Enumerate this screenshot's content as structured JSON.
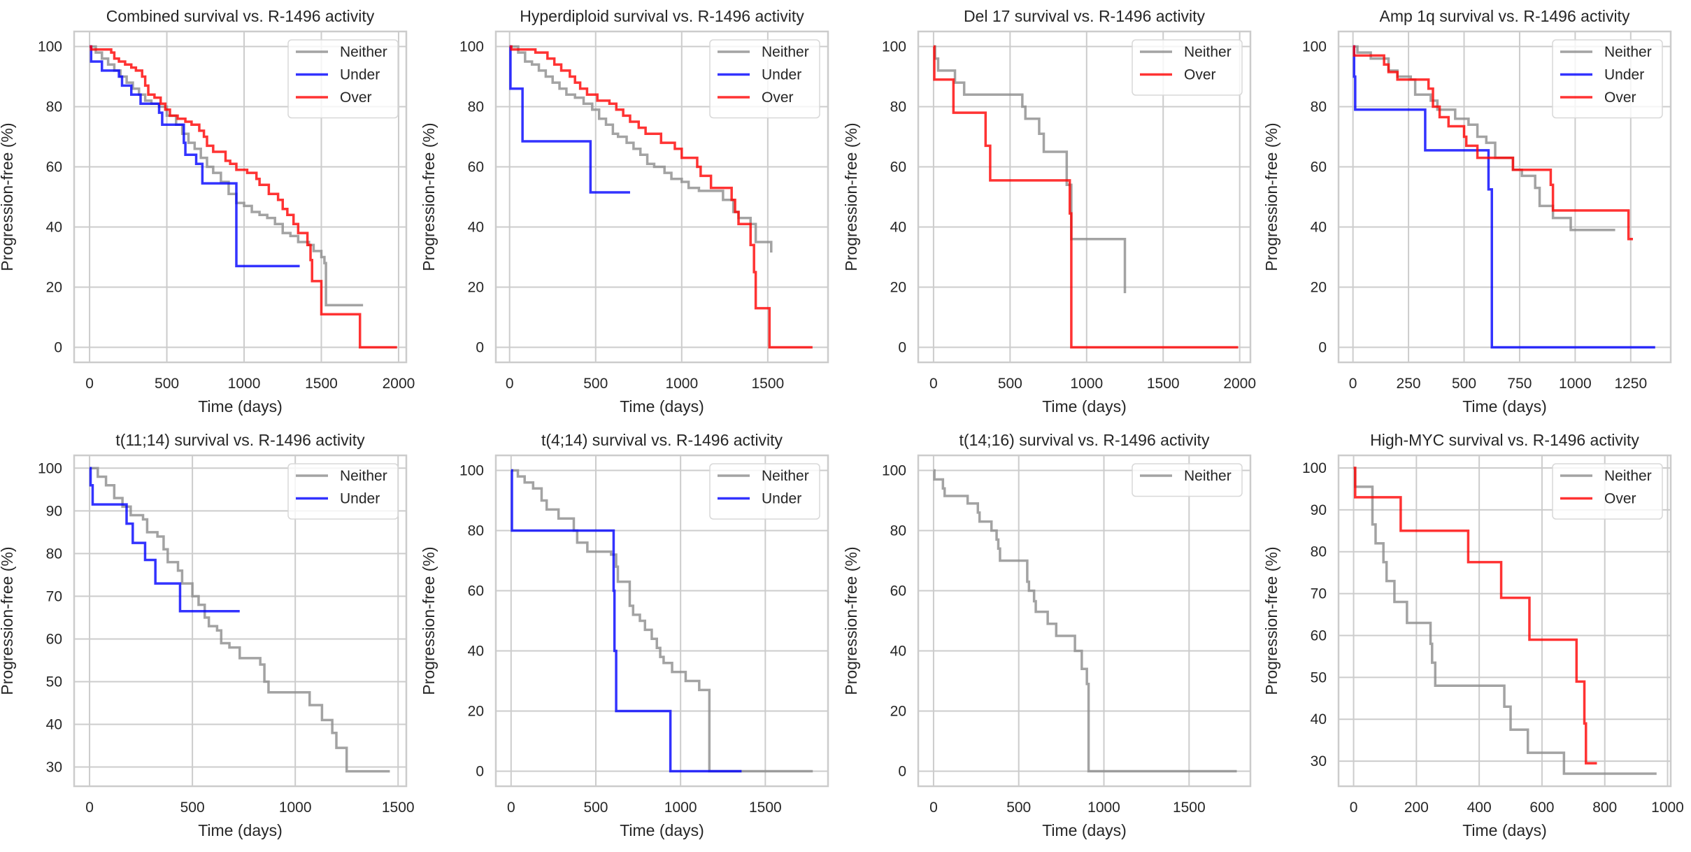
{
  "figure": {
    "colors": {
      "Neither": "#8c8c8c",
      "Under": "#0000ff",
      "Over": "#ff0000",
      "grid": "#cccccc",
      "frame": "#cccccc",
      "text": "#262626"
    }
  },
  "chart_data": [
    {
      "type": "line",
      "step": true,
      "title": "Combined survival vs. R-1496 activity",
      "xlabel": "Time (days)",
      "ylabel": "Progression-free (%)",
      "xlim": [
        -100,
        2050
      ],
      "ylim": [
        -5,
        105
      ],
      "xticks": [
        0,
        500,
        1000,
        1500,
        2000
      ],
      "yticks": [
        0,
        20,
        40,
        60,
        80,
        100
      ],
      "grid": true,
      "legend_position": "top-right",
      "series": [
        {
          "name": "Neither",
          "x": [
            0,
            40,
            80,
            120,
            160,
            200,
            240,
            280,
            320,
            360,
            400,
            450,
            500,
            560,
            600,
            640,
            680,
            720,
            760,
            800,
            850,
            900,
            950,
            1000,
            1050,
            1100,
            1150,
            1200,
            1250,
            1300,
            1350,
            1420,
            1450,
            1500,
            1520,
            1530,
            1770
          ],
          "y": [
            100,
            98,
            96,
            94,
            92,
            90,
            88,
            86,
            84,
            82,
            81,
            80,
            77,
            74,
            71,
            68,
            66,
            63,
            60,
            58,
            55,
            51,
            48,
            47,
            45,
            44,
            43,
            41,
            38,
            37,
            35,
            34,
            32,
            30,
            28,
            14,
            14
          ]
        },
        {
          "name": "Under",
          "x": [
            0,
            10,
            80,
            190,
            210,
            270,
            330,
            450,
            470,
            610,
            620,
            640,
            690,
            730,
            950,
            1360
          ],
          "y": [
            100,
            95,
            92,
            90,
            87,
            84,
            81,
            78,
            74,
            68,
            64,
            64,
            61,
            54.5,
            27,
            27
          ]
        },
        {
          "name": "Over",
          "x": [
            0,
            10,
            140,
            160,
            190,
            230,
            270,
            300,
            340,
            360,
            380,
            420,
            460,
            490,
            520,
            570,
            620,
            660,
            700,
            710,
            740,
            760,
            800,
            880,
            910,
            950,
            1020,
            1080,
            1100,
            1160,
            1220,
            1250,
            1280,
            1320,
            1350,
            1410,
            1430,
            1440,
            1500,
            1550,
            1750,
            1990
          ],
          "y": [
            100,
            99,
            98,
            96,
            95,
            94,
            93,
            92,
            90,
            87,
            84,
            83,
            81,
            79,
            77,
            76,
            75,
            74,
            74,
            72,
            70,
            67,
            65,
            62,
            61,
            59,
            58,
            56,
            54,
            51,
            49,
            46,
            44,
            41,
            38,
            34,
            29,
            22,
            11,
            11,
            0,
            0
          ]
        }
      ]
    },
    {
      "type": "line",
      "step": true,
      "title": "Hyperdiploid survival vs. R-1496 activity",
      "xlabel": "Time (days)",
      "ylabel": "Progression-free (%)",
      "xlim": [
        -80,
        1850
      ],
      "ylim": [
        -5,
        105
      ],
      "xticks": [
        0,
        500,
        1000,
        1500
      ],
      "yticks": [
        0,
        20,
        40,
        60,
        80,
        100
      ],
      "grid": true,
      "legend_position": "top-right",
      "series": [
        {
          "name": "Neither",
          "x": [
            0,
            50,
            90,
            130,
            170,
            210,
            250,
            290,
            330,
            380,
            430,
            480,
            520,
            560,
            600,
            630,
            680,
            720,
            760,
            800,
            840,
            900,
            940,
            1000,
            1040,
            1100,
            1150,
            1200,
            1240,
            1300,
            1330,
            1400,
            1430,
            1500,
            1520
          ],
          "y": [
            100,
            98,
            95,
            94,
            92,
            90,
            88,
            86,
            84,
            83,
            81,
            79,
            76,
            74,
            71,
            70,
            68,
            66,
            64,
            61,
            60,
            58,
            56,
            55,
            53,
            52,
            52,
            52,
            49,
            45,
            43,
            41,
            35,
            35,
            31.5
          ]
        },
        {
          "name": "Under",
          "x": [
            0,
            5,
            75,
            470,
            700
          ],
          "y": [
            100,
            86,
            68.5,
            51.5,
            51.5
          ]
        },
        {
          "name": "Over",
          "x": [
            0,
            10,
            150,
            220,
            260,
            300,
            350,
            380,
            410,
            450,
            510,
            580,
            620,
            660,
            700,
            750,
            790,
            880,
            960,
            1000,
            1090,
            1110,
            1170,
            1290,
            1310,
            1330,
            1400,
            1420,
            1430,
            1510,
            1760
          ],
          "y": [
            100,
            99,
            98,
            96,
            94,
            92,
            90,
            88,
            86,
            84,
            82,
            81,
            79,
            77,
            75,
            73,
            71,
            68,
            66,
            63,
            60,
            57,
            53,
            49,
            45,
            41,
            34,
            25,
            13,
            0,
            0
          ]
        }
      ]
    },
    {
      "type": "line",
      "step": true,
      "title": "Del 17 survival vs. R-1496 activity",
      "xlabel": "Time (days)",
      "ylabel": "Progression-free (%)",
      "xlim": [
        -100,
        2070
      ],
      "ylim": [
        -5,
        105
      ],
      "xticks": [
        0,
        500,
        1000,
        1500,
        2000
      ],
      "yticks": [
        0,
        20,
        40,
        60,
        80,
        100
      ],
      "grid": true,
      "legend_position": "top-right",
      "series": [
        {
          "name": "Neither",
          "x": [
            0,
            10,
            30,
            140,
            200,
            580,
            600,
            690,
            720,
            870,
            900,
            1250
          ],
          "y": [
            100,
            96,
            92,
            88,
            84,
            80,
            76,
            71,
            65,
            54,
            36,
            18
          ]
        },
        {
          "name": "Over",
          "x": [
            0,
            5,
            130,
            340,
            370,
            890,
            900,
            1990
          ],
          "y": [
            100,
            89,
            78,
            67,
            55.5,
            44.5,
            0,
            0
          ]
        }
      ]
    },
    {
      "type": "line",
      "step": true,
      "title": "Amp 1q survival vs. R-1496 activity",
      "xlabel": "Time (days)",
      "ylabel": "Progression-free (%)",
      "xlim": [
        -65,
        1430
      ],
      "ylim": [
        -5,
        105
      ],
      "xticks": [
        0,
        250,
        500,
        750,
        1000,
        1250
      ],
      "yticks": [
        0,
        20,
        40,
        60,
        80,
        100
      ],
      "grid": true,
      "legend_position": "top-right",
      "series": [
        {
          "name": "Neither",
          "x": [
            0,
            20,
            80,
            160,
            200,
            260,
            280,
            350,
            380,
            430,
            460,
            520,
            560,
            600,
            640,
            680,
            720,
            760,
            820,
            840,
            900,
            980,
            1180
          ],
          "y": [
            100,
            98,
            96,
            92,
            90,
            89,
            84,
            82,
            79,
            79,
            76,
            74,
            70,
            68,
            63,
            63,
            59,
            57,
            53,
            47,
            43,
            39,
            39
          ]
        },
        {
          "name": "Under",
          "x": [
            0,
            5,
            10,
            325,
            610,
            625,
            1360
          ],
          "y": [
            100,
            90,
            79,
            65.5,
            52.5,
            0,
            0
          ]
        },
        {
          "name": "Over",
          "x": [
            0,
            5,
            140,
            160,
            200,
            340,
            360,
            390,
            430,
            500,
            510,
            560,
            720,
            890,
            900,
            1240,
            1260
          ],
          "y": [
            100,
            97,
            94,
            91.5,
            89,
            86,
            80,
            76.5,
            73.5,
            70,
            67,
            63,
            59,
            54,
            45.5,
            36,
            36
          ]
        }
      ]
    },
    {
      "type": "line",
      "step": true,
      "title": "t(11;14) survival vs. R-1496 activity",
      "xlabel": "Time (days)",
      "ylabel": "Progression-free (%)",
      "xlim": [
        -75,
        1540
      ],
      "ylim": [
        25.5,
        103
      ],
      "xticks": [
        0,
        500,
        1000,
        1500
      ],
      "yticks": [
        30,
        40,
        50,
        60,
        70,
        80,
        90,
        100
      ],
      "grid": true,
      "legend_position": "top-right",
      "series": [
        {
          "name": "Neither",
          "x": [
            0,
            40,
            80,
            120,
            160,
            200,
            260,
            280,
            330,
            360,
            380,
            430,
            450,
            500,
            530,
            560,
            580,
            620,
            640,
            680,
            730,
            830,
            850,
            870,
            1070,
            1130,
            1180,
            1200,
            1250,
            1460
          ],
          "y": [
            100,
            98,
            96,
            93,
            91,
            89,
            88,
            85,
            84,
            81,
            78,
            76,
            73,
            70,
            68,
            65,
            63,
            62,
            59,
            58,
            55.5,
            54,
            50,
            47.5,
            44.5,
            41,
            38,
            34.5,
            29,
            29
          ]
        },
        {
          "name": "Under",
          "x": [
            0,
            5,
            15,
            180,
            210,
            270,
            320,
            440,
            730
          ],
          "y": [
            100,
            96,
            91.5,
            87,
            82.5,
            78.5,
            73,
            66.5,
            66.5
          ]
        }
      ]
    },
    {
      "type": "line",
      "step": true,
      "title": "t(4;14) survival vs. R-1496 activity",
      "xlabel": "Time (days)",
      "ylabel": "Progression-free (%)",
      "xlim": [
        -90,
        1870
      ],
      "ylim": [
        -5,
        105
      ],
      "xticks": [
        0,
        500,
        1000,
        1500
      ],
      "yticks": [
        0,
        20,
        40,
        60,
        80,
        100
      ],
      "grid": true,
      "legend_position": "top-right",
      "series": [
        {
          "name": "Neither",
          "x": [
            0,
            40,
            80,
            130,
            180,
            210,
            280,
            370,
            390,
            450,
            590,
            620,
            630,
            700,
            720,
            760,
            790,
            830,
            860,
            880,
            900,
            950,
            1030,
            1110,
            1170,
            1180,
            1780
          ],
          "y": [
            100,
            98,
            96,
            94,
            90,
            87,
            84,
            80,
            76,
            73,
            72,
            68,
            63,
            55,
            52,
            50,
            47,
            44,
            41,
            38,
            36,
            33,
            30,
            27,
            0,
            0,
            0
          ]
        },
        {
          "name": "Under",
          "x": [
            0,
            5,
            605,
            610,
            620,
            940,
            1360
          ],
          "y": [
            100,
            80,
            60,
            40,
            20,
            0,
            0
          ]
        }
      ]
    },
    {
      "type": "line",
      "step": true,
      "title": "t(14;16) survival vs. R-1496 activity",
      "xlabel": "Time (days)",
      "ylabel": "Progression-free (%)",
      "xlim": [
        -90,
        1860
      ],
      "ylim": [
        -5,
        105
      ],
      "xticks": [
        0,
        500,
        1000,
        1500
      ],
      "yticks": [
        0,
        20,
        40,
        60,
        80,
        100
      ],
      "grid": true,
      "legend_position": "top-right",
      "series": [
        {
          "name": "Neither",
          "x": [
            0,
            5,
            55,
            65,
            200,
            260,
            270,
            340,
            370,
            380,
            390,
            550,
            560,
            590,
            600,
            670,
            720,
            830,
            870,
            900,
            910,
            1780
          ],
          "y": [
            100,
            97,
            94,
            91.5,
            89,
            86,
            83,
            80,
            77,
            74,
            70,
            63,
            60,
            56.5,
            53,
            49,
            45,
            40,
            34,
            29,
            0,
            0
          ]
        }
      ]
    },
    {
      "type": "line",
      "step": true,
      "title": "High-MYC survival vs. R-1496 activity",
      "xlabel": "Time (days)",
      "ylabel": "Progression-free (%)",
      "xlim": [
        -48,
        1010
      ],
      "ylim": [
        24,
        103
      ],
      "xticks": [
        0,
        200,
        400,
        600,
        800,
        1000
      ],
      "yticks": [
        30,
        40,
        50,
        60,
        70,
        80,
        90,
        100
      ],
      "grid": true,
      "legend_position": "top-right",
      "series": [
        {
          "name": "Neither",
          "x": [
            0,
            5,
            60,
            70,
            95,
            105,
            130,
            170,
            245,
            250,
            260,
            480,
            500,
            555,
            670,
            965
          ],
          "y": [
            100,
            95.5,
            86.5,
            82,
            77.5,
            73,
            68,
            63,
            58,
            53.5,
            48,
            43,
            37.5,
            32,
            27,
            27
          ]
        },
        {
          "name": "Over",
          "x": [
            0,
            5,
            150,
            365,
            470,
            560,
            710,
            735,
            740,
            775
          ],
          "y": [
            100,
            93,
            85,
            77.5,
            69,
            59,
            49,
            39,
            29.5,
            29.5
          ]
        }
      ]
    }
  ]
}
